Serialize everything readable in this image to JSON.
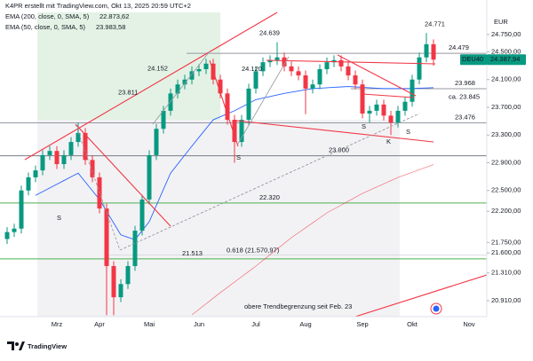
{
  "header": "K4PR erstellt mit TradingView.com, Okt 13, 2025 20:59 UTC+2",
  "brand": "TradingView",
  "chart_data": {
    "type": "candlestick",
    "currency": "EUR",
    "up_color": "#089981",
    "down_color": "#f23645",
    "categories": [
      null,
      null,
      null,
      null,
      null,
      null,
      null,
      "Mrz",
      null,
      null,
      null,
      null,
      null,
      "Apr",
      null,
      null,
      null,
      null,
      null,
      null,
      "Mai",
      null,
      null,
      null,
      null,
      null,
      null,
      "Jun",
      null,
      null,
      null,
      null,
      null,
      null,
      null,
      "Jul",
      null,
      null,
      null,
      null,
      null,
      null,
      "Aug",
      null,
      null,
      null,
      null,
      null,
      null,
      null,
      "Sep",
      null,
      null,
      null,
      null,
      null,
      null,
      "Okt",
      null,
      null,
      null,
      null,
      null,
      null,
      null,
      "Nov",
      null,
      null
    ],
    "open": [
      21800,
      21900,
      21950,
      22500,
      22690,
      22790,
      23010,
      23070,
      22880,
      23010,
      23200,
      23330,
      22940,
      22690,
      22240,
      21410,
      20960,
      21150,
      21410,
      21920,
      22370,
      23010,
      23390,
      23650,
      23900,
      24030,
      24100,
      24220,
      24250,
      24330,
      24100,
      23900,
      23520,
      23200,
      23520,
      23970,
      24220,
      24350,
      24380,
      24420,
      24290,
      24220,
      24160,
      23970,
      24030,
      24250,
      24350,
      24380,
      24290,
      24160,
      24030,
      23610,
      23650,
      23740,
      23580,
      23480,
      23650,
      23780,
      24100,
      24420,
      24610,
      null,
      null,
      null,
      null,
      null,
      null,
      null
    ],
    "high": [
      21970,
      22020,
      22570,
      22760,
      22860,
      23080,
      23140,
      23140,
      23080,
      23270,
      23480,
      23400,
      23010,
      22760,
      22310,
      21480,
      21220,
      21480,
      21990,
      22440,
      23080,
      23460,
      23720,
      23970,
      24100,
      24170,
      24290,
      24320,
      24400,
      24400,
      24170,
      23970,
      23590,
      23590,
      24040,
      24290,
      24420,
      24450,
      24639,
      24490,
      24360,
      24290,
      24230,
      24100,
      24320,
      24420,
      24450,
      24450,
      24360,
      24230,
      24100,
      23720,
      23810,
      23810,
      23650,
      23720,
      23850,
      24170,
      24490,
      24771,
      24680,
      null,
      null,
      null,
      null,
      null,
      null,
      null
    ],
    "low": [
      21730,
      21830,
      21880,
      22430,
      22620,
      22720,
      22940,
      22810,
      22810,
      22940,
      23130,
      22870,
      22620,
      22170,
      20700,
      20700,
      20890,
      21080,
      21340,
      21850,
      22300,
      22940,
      23320,
      23580,
      23830,
      23960,
      24030,
      24150,
      24180,
      24030,
      23830,
      23450,
      22900,
      23130,
      23450,
      23900,
      24150,
      24280,
      24310,
      24220,
      24150,
      24090,
      23600,
      23900,
      23960,
      24180,
      24280,
      24220,
      24090,
      23960,
      23540,
      23480,
      23580,
      23510,
      23300,
      23410,
      23580,
      23710,
      24030,
      24350,
      24300,
      null,
      null,
      null,
      null,
      null,
      null,
      null
    ],
    "close": [
      21900,
      21950,
      22500,
      22690,
      22790,
      23010,
      23070,
      22880,
      23010,
      23200,
      23330,
      22940,
      22690,
      22240,
      21410,
      20960,
      21150,
      21410,
      21920,
      22370,
      23010,
      23390,
      23650,
      23900,
      24030,
      24100,
      24220,
      24250,
      24330,
      24100,
      23900,
      23520,
      23200,
      23520,
      23970,
      24220,
      24350,
      24380,
      24420,
      24290,
      24220,
      24160,
      23970,
      24030,
      24250,
      24350,
      24380,
      24290,
      24160,
      24030,
      23610,
      23650,
      23740,
      23580,
      23480,
      23650,
      23780,
      24100,
      24420,
      24610,
      24387.94,
      null,
      null,
      null,
      null,
      null,
      null,
      null
    ],
    "last_price": {
      "name": "DEU40",
      "value": 24387.94,
      "label": "24.387,94",
      "color": "#089981"
    },
    "series": [
      {
        "name": "EMA (200, close, 0, SMA, 5)",
        "color": "#f23645",
        "last_label": "22.873,62",
        "values": [
          null,
          null,
          null,
          null,
          null,
          null,
          null,
          null,
          null,
          null,
          null,
          null,
          null,
          null,
          null,
          null,
          null,
          null,
          null,
          null,
          null,
          null,
          null,
          null,
          null,
          null,
          20706,
          20786,
          20866,
          20946,
          21026,
          21103,
          21179,
          21256,
          21332,
          21409,
          21491,
          21573,
          21655,
          21737,
          21819,
          21891,
          21962,
          22034,
          22105,
          22177,
          22233,
          22289,
          22346,
          22402,
          22458,
          22504,
          22550,
          22596,
          22642,
          22688,
          22725,
          22762,
          22800,
          22837,
          22873.62,
          null,
          null,
          null,
          null,
          null,
          null,
          null
        ]
      },
      {
        "name": "EMA (50, close, 0, SMA, 5)",
        "color": "#2962ff",
        "last_label": "23.983,58",
        "values": [
          null,
          null,
          null,
          null,
          22430,
          22483,
          22537,
          22590,
          22643,
          22697,
          22750,
          22623,
          22497,
          22370,
          22200,
          22030,
          21860,
          21825,
          21790,
          21920,
          22050,
          22283,
          22517,
          22750,
          22880,
          23010,
          23140,
          23267,
          23393,
          23520,
          23563,
          23607,
          23650,
          23703,
          23757,
          23810,
          23833,
          23855,
          23878,
          23900,
          23918,
          23935,
          23953,
          23970,
          23976,
          23982,
          23988,
          23994,
          24000,
          23994,
          23988,
          23982,
          23976,
          23970,
          23970,
          23970,
          23970,
          23970,
          23975,
          23979,
          23983.58,
          null,
          null,
          null,
          null,
          null,
          null,
          null
        ]
      }
    ],
    "ylim": [
      20680,
      25120
    ],
    "yticks": [
      {
        "value": 24750,
        "label": "24.750,00"
      },
      {
        "value": 24500,
        "label": "24.500,00"
      },
      {
        "value": 24100,
        "label": "24.100,00"
      },
      {
        "value": 23700,
        "label": "23.700,00"
      },
      {
        "value": 23300,
        "label": "23.300,00"
      },
      {
        "value": 22900,
        "label": "22.900,00"
      },
      {
        "value": 22500,
        "label": "22.500,00"
      },
      {
        "value": 22200,
        "label": "22.200,00"
      },
      {
        "value": 21750,
        "label": "21.750,00"
      },
      {
        "value": 21600,
        "label": "21.600,00"
      },
      {
        "value": 21310,
        "label": "21.310,00"
      },
      {
        "value": 20910,
        "label": "20.910,00"
      }
    ],
    "levels": [
      {
        "value": 24479,
        "label": "24.479"
      },
      {
        "value": 23968,
        "label": "23.968"
      },
      {
        "value": 23476,
        "label": "23.476"
      },
      {
        "value": 23000,
        "label": "23.000"
      },
      {
        "value": 22320,
        "label": "22.320"
      },
      {
        "value": 21513,
        "label": "21.513"
      }
    ],
    "price_labels": [
      {
        "value": 24771,
        "label": "24.771"
      },
      {
        "value": 24639,
        "label": "24.639"
      },
      {
        "value": 24152,
        "label": "24.152"
      },
      {
        "value": 24120,
        "label": "24.120"
      },
      {
        "value": 23811,
        "label": "23.811"
      }
    ],
    "fib": {
      "value": 21570.97,
      "label": "0.618 (21.570,97)"
    },
    "estimate": {
      "value": 23845,
      "label": "ca. 23.845"
    },
    "markers": [
      "S",
      "S",
      "S",
      "S",
      "K"
    ],
    "note": "obere Trendbegrenzung seit Feb. 23"
  }
}
